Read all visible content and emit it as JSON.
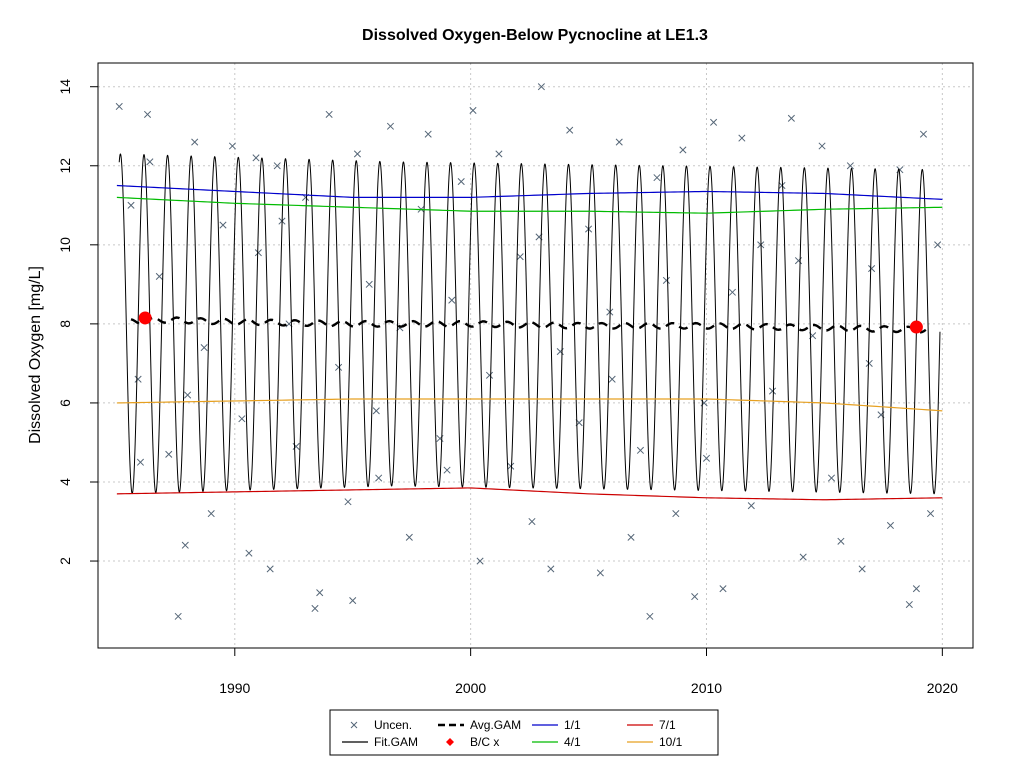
{
  "chart_data": {
    "type": "line",
    "title": "Dissolved Oxygen-Below Pycnocline at LE1.3",
    "xlabel": "",
    "ylabel": "Dissolved Oxygen [mg/L]",
    "xlim": [
      1984.2,
      2021.3
    ],
    "ylim": [
      -0.2,
      14.6
    ],
    "x_ticks": [
      "1990",
      "2000",
      "2010",
      "2020"
    ],
    "y_ticks": [
      "2",
      "4",
      "6",
      "8",
      "10",
      "12",
      "14"
    ],
    "grid": true,
    "legend_position": "bottom-center",
    "fit_gam": {
      "name": "Fit.GAM",
      "color": "#000000",
      "x_start": 1985.1,
      "x_end": 2019.9,
      "cycles_per_year": 1,
      "peak_month_fraction": 0.05,
      "upper_envelope": [
        12.3,
        12.1,
        12.0,
        11.9
      ],
      "lower_envelope": [
        3.7,
        3.9,
        3.8,
        3.7
      ]
    },
    "avg_gam": {
      "name": "Avg.GAM",
      "color": "#000000",
      "x": [
        1985.6,
        1987,
        1990,
        1995,
        2000,
        2005,
        2010,
        2015,
        2019.3
      ],
      "y": [
        8.05,
        8.1,
        8.05,
        8.0,
        8.0,
        7.95,
        7.95,
        7.9,
        7.85
      ]
    },
    "bc_points": {
      "name": "B/C x",
      "color": "#ff0000",
      "points": [
        [
          1986.2,
          8.15
        ],
        [
          2018.9,
          7.92
        ]
      ]
    },
    "percentile_lines": [
      {
        "name": "1/1",
        "color": "#0000cc",
        "x": [
          1985,
          1990,
          1995,
          2000,
          2005,
          2010,
          2015,
          2020
        ],
        "y": [
          11.5,
          11.35,
          11.2,
          11.2,
          11.3,
          11.35,
          11.3,
          11.15
        ]
      },
      {
        "name": "4/1",
        "color": "#00bb00",
        "x": [
          1985,
          1990,
          1995,
          2000,
          2005,
          2010,
          2015,
          2020
        ],
        "y": [
          11.2,
          11.05,
          10.95,
          10.85,
          10.85,
          10.8,
          10.9,
          10.95
        ]
      },
      {
        "name": "7/1",
        "color": "#cc0000",
        "x": [
          1985,
          1990,
          1995,
          2000,
          2005,
          2010,
          2015,
          2020
        ],
        "y": [
          3.7,
          3.75,
          3.8,
          3.85,
          3.7,
          3.6,
          3.55,
          3.6
        ]
      },
      {
        "name": "10/1",
        "color": "#e6a020",
        "x": [
          1985,
          1990,
          1995,
          2000,
          2005,
          2010,
          2015,
          2020
        ],
        "y": [
          6.0,
          6.05,
          6.1,
          6.1,
          6.1,
          6.1,
          6.0,
          5.8
        ]
      }
    ],
    "uncensored": {
      "name": "Uncen.",
      "color": "#556677",
      "points": [
        [
          1985.1,
          13.5
        ],
        [
          1985.6,
          11.0
        ],
        [
          1985.9,
          6.6
        ],
        [
          1986.3,
          13.3
        ],
        [
          1986.4,
          12.1
        ],
        [
          1986.8,
          9.2
        ],
        [
          1987.2,
          4.7
        ],
        [
          1987.6,
          0.6
        ],
        [
          1987.9,
          2.4
        ],
        [
          1988.3,
          12.6
        ],
        [
          1988.7,
          7.4
        ],
        [
          1989.0,
          3.2
        ],
        [
          1989.5,
          10.5
        ],
        [
          1989.9,
          12.5
        ],
        [
          1990.3,
          5.6
        ],
        [
          1990.6,
          2.2
        ],
        [
          1991.0,
          9.8
        ],
        [
          1991.5,
          1.8
        ],
        [
          1991.8,
          12.0
        ],
        [
          1992.3,
          8.0
        ],
        [
          1992.6,
          4.9
        ],
        [
          1993.0,
          11.2
        ],
        [
          1993.4,
          0.8
        ],
        [
          1993.6,
          1.2
        ],
        [
          1994.0,
          13.3
        ],
        [
          1994.4,
          6.9
        ],
        [
          1994.8,
          3.5
        ],
        [
          1995.2,
          12.3
        ],
        [
          1995.7,
          9.0
        ],
        [
          1996.1,
          4.1
        ],
        [
          1996.6,
          13.0
        ],
        [
          1997.0,
          7.9
        ],
        [
          1997.4,
          2.6
        ],
        [
          1997.9,
          10.9
        ],
        [
          1998.2,
          12.8
        ],
        [
          1998.7,
          5.1
        ],
        [
          1999.2,
          8.6
        ],
        [
          1999.6,
          11.6
        ],
        [
          2000.1,
          13.4
        ],
        [
          2000.4,
          2.0
        ],
        [
          2000.8,
          6.7
        ],
        [
          2001.2,
          12.3
        ],
        [
          2001.7,
          4.4
        ],
        [
          2002.1,
          9.7
        ],
        [
          2002.6,
          3.0
        ],
        [
          2003.0,
          14.0
        ],
        [
          2003.4,
          1.8
        ],
        [
          2003.8,
          7.3
        ],
        [
          2004.2,
          12.9
        ],
        [
          2004.6,
          5.5
        ],
        [
          2005.0,
          10.4
        ],
        [
          2005.5,
          1.7
        ],
        [
          2005.9,
          8.3
        ],
        [
          2006.3,
          12.6
        ],
        [
          2006.8,
          2.6
        ],
        [
          2007.2,
          4.8
        ],
        [
          2007.6,
          0.6
        ],
        [
          2007.9,
          11.7
        ],
        [
          2008.3,
          9.1
        ],
        [
          2008.7,
          3.2
        ],
        [
          2009.0,
          12.4
        ],
        [
          2009.5,
          1.1
        ],
        [
          2009.9,
          6.0
        ],
        [
          2010.3,
          13.1
        ],
        [
          2010.7,
          1.3
        ],
        [
          2011.1,
          8.8
        ],
        [
          2011.5,
          12.7
        ],
        [
          2011.9,
          3.4
        ],
        [
          2012.3,
          10.0
        ],
        [
          2012.8,
          6.3
        ],
        [
          2013.2,
          11.5
        ],
        [
          2013.6,
          13.2
        ],
        [
          2014.1,
          2.1
        ],
        [
          2014.5,
          7.7
        ],
        [
          2014.9,
          12.5
        ],
        [
          2015.3,
          4.1
        ],
        [
          2015.7,
          2.5
        ],
        [
          2016.1,
          12.0
        ],
        [
          2016.6,
          1.8
        ],
        [
          2017.0,
          9.4
        ],
        [
          2017.4,
          5.7
        ],
        [
          2017.8,
          2.9
        ],
        [
          2018.2,
          11.9
        ],
        [
          2018.6,
          0.9
        ],
        [
          2018.9,
          1.3
        ],
        [
          2019.2,
          12.8
        ],
        [
          2019.5,
          3.2
        ],
        [
          2019.8,
          10.0
        ],
        [
          1988.0,
          6.2
        ],
        [
          1992.0,
          10.6
        ],
        [
          1996.0,
          5.8
        ],
        [
          1999.0,
          4.3
        ],
        [
          2002.9,
          10.2
        ],
        [
          2006.0,
          6.6
        ],
        [
          2010.0,
          4.6
        ],
        [
          2013.9,
          9.6
        ],
        [
          2016.9,
          7.0
        ],
        [
          1986.0,
          4.5
        ],
        [
          1990.9,
          12.2
        ],
        [
          1995.0,
          1.0
        ]
      ]
    }
  },
  "legend": {
    "entries": [
      "Uncen.",
      "Avg.GAM",
      "1/1",
      "7/1",
      "Fit.GAM",
      "B/C x",
      "4/1",
      "10/1"
    ]
  }
}
